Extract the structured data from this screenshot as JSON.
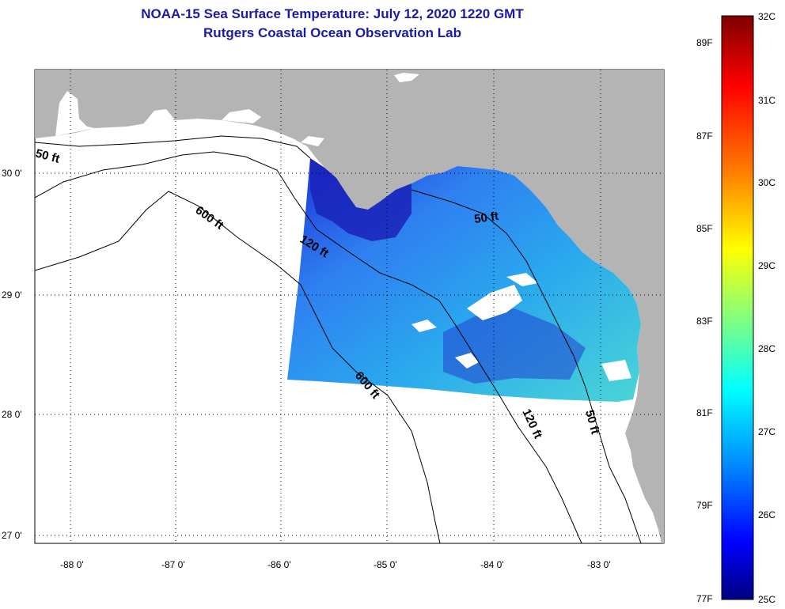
{
  "title": {
    "line1": "NOAA-15 Sea Surface Temperature:  July 12, 2020 1220 GMT",
    "line2": "Rutgers Coastal Ocean Observation Lab"
  },
  "map": {
    "longitude_labels": [
      "-88 0'",
      "-87 0'",
      "-86 0'",
      "-85 0'",
      "-84 0'",
      "-83 0'"
    ],
    "latitude_labels": [
      "30 0'",
      "29 0'",
      "28 0'",
      "27 0'"
    ],
    "contour_labels": {
      "c50_west": "50 ft",
      "c600_north": "600 ft",
      "c120_north": "120 ft",
      "c50_east": "50 ft",
      "c600_south": "600 ft",
      "c120_south": "120 ft",
      "c50_south": "50 ft"
    },
    "colors": {
      "land": "#b4b4b4",
      "ocean": "#ffffff",
      "contour": "#000000"
    }
  },
  "colorbar": {
    "fahrenheit_labels": [
      "89F",
      "87F",
      "85F",
      "83F",
      "81F",
      "79F",
      "77F"
    ],
    "celsius_labels": [
      "32C",
      "31C",
      "30C",
      "29C",
      "28C",
      "27C",
      "26C",
      "25C"
    ],
    "gradient_colors": [
      "#7f0000",
      "#ff0000",
      "#ff8000",
      "#ffff00",
      "#80ff80",
      "#00ffff",
      "#0080ff",
      "#0000ff",
      "#00007f"
    ]
  }
}
